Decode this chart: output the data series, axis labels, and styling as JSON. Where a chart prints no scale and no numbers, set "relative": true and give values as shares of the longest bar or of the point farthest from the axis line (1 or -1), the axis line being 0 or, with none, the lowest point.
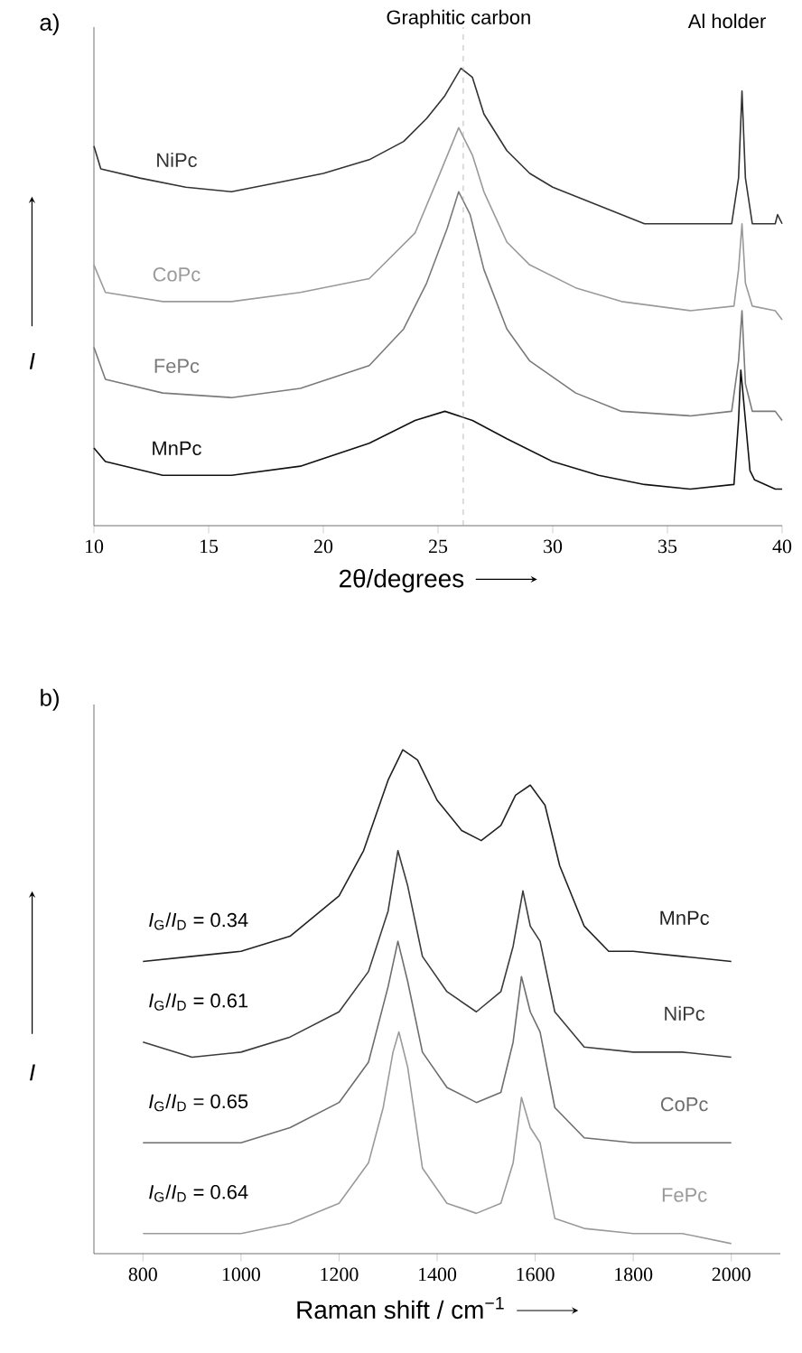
{
  "chart_data": [
    {
      "type": "line",
      "title": "a)",
      "xlabel": "2θ/degrees",
      "ylabel": "I",
      "relative": true,
      "xlim": [
        10,
        40
      ],
      "xticks": [
        10,
        15,
        20,
        25,
        30,
        35,
        40
      ],
      "annotations": [
        "Graphitic carbon",
        "Al holder"
      ],
      "ref_lines": [
        {
          "axis": "x",
          "value": 26.1,
          "color": "#aaaaaa",
          "line_style": "dashed"
        }
      ],
      "series": [
        {
          "name": "NiPc",
          "color": "#333333",
          "x": [
            10,
            10.3,
            12,
            14,
            16,
            18,
            20,
            22,
            23.5,
            24.5,
            25.3,
            26,
            26.5,
            27,
            28,
            29,
            30,
            32,
            34,
            36,
            37.8,
            38.1,
            38.25,
            38.4,
            38.7,
            39.7,
            39.8,
            40
          ],
          "values": [
            0.83,
            0.78,
            0.76,
            0.74,
            0.73,
            0.75,
            0.77,
            0.8,
            0.84,
            0.89,
            0.94,
            1.0,
            0.98,
            0.9,
            0.82,
            0.77,
            0.74,
            0.7,
            0.66,
            0.66,
            0.66,
            0.76,
            0.95,
            0.76,
            0.66,
            0.66,
            0.68,
            0.66
          ]
        },
        {
          "name": "CoPc",
          "color": "#9a9a9a",
          "x": [
            10,
            10.5,
            13,
            16,
            19,
            22,
            24,
            25,
            25.9,
            26.5,
            27,
            28,
            29,
            31,
            33,
            36,
            37.9,
            38.1,
            38.25,
            38.4,
            38.7,
            39.7,
            40
          ],
          "values": [
            0.57,
            0.51,
            0.49,
            0.49,
            0.51,
            0.54,
            0.64,
            0.76,
            0.87,
            0.81,
            0.73,
            0.62,
            0.57,
            0.52,
            0.49,
            0.47,
            0.48,
            0.56,
            0.66,
            0.53,
            0.48,
            0.47,
            0.45
          ]
        },
        {
          "name": "FePc",
          "color": "#7a7a7a",
          "x": [
            10,
            10.5,
            13,
            16,
            19,
            22,
            23.5,
            24.5,
            25.4,
            25.9,
            26.4,
            27,
            28,
            29,
            31,
            33,
            36,
            37.8,
            38.1,
            38.25,
            38.4,
            38.7,
            39.7,
            40
          ],
          "values": [
            0.39,
            0.32,
            0.29,
            0.28,
            0.3,
            0.35,
            0.43,
            0.53,
            0.65,
            0.73,
            0.68,
            0.56,
            0.43,
            0.36,
            0.29,
            0.25,
            0.24,
            0.25,
            0.36,
            0.47,
            0.31,
            0.25,
            0.25,
            0.23
          ]
        },
        {
          "name": "MnPc",
          "color": "#111111",
          "x": [
            10,
            10.5,
            13,
            16,
            19,
            22,
            24,
            25.3,
            26.5,
            28,
            30,
            32,
            34,
            36,
            37.9,
            38.1,
            38.2,
            38.4,
            38.6,
            38.8,
            39.7,
            40
          ],
          "values": [
            0.17,
            0.14,
            0.11,
            0.11,
            0.13,
            0.18,
            0.23,
            0.25,
            0.23,
            0.19,
            0.14,
            0.11,
            0.09,
            0.08,
            0.09,
            0.23,
            0.34,
            0.23,
            0.12,
            0.1,
            0.08,
            0.08
          ]
        }
      ]
    },
    {
      "type": "line",
      "title": "b)",
      "xlabel": "Raman shift / cm$^{−1}$",
      "ylabel": "I",
      "relative": true,
      "xlim": [
        700,
        2100
      ],
      "xticks": [
        800,
        1000,
        1200,
        1400,
        1600,
        1800,
        2000
      ],
      "annotations": [
        "*I*$_{G}$/*I*$_{D}$ = 0.34",
        "*I*$_{G}$/*I*$_{D}$ = 0.61",
        "*I*$_{G}$/*I*$_{D}$ = 0.65",
        "*I*$_{G}$/*I*$_{D}$ = 0.64"
      ],
      "series": [
        {
          "name": "MnPc",
          "color": "#222222",
          "x": [
            800,
            900,
            1000,
            1100,
            1200,
            1250,
            1300,
            1330,
            1360,
            1400,
            1450,
            1490,
            1530,
            1560,
            1590,
            1620,
            1650,
            1700,
            1750,
            1800,
            1900,
            2000
          ],
          "values": [
            0.58,
            0.59,
            0.6,
            0.63,
            0.71,
            0.8,
            0.94,
            1.0,
            0.98,
            0.9,
            0.84,
            0.82,
            0.85,
            0.91,
            0.93,
            0.89,
            0.77,
            0.65,
            0.6,
            0.6,
            0.59,
            0.58
          ]
        },
        {
          "name": "NiPc",
          "color": "#3c3c3c",
          "x": [
            800,
            900,
            1000,
            1100,
            1200,
            1260,
            1300,
            1320,
            1340,
            1370,
            1420,
            1480,
            1530,
            1555,
            1575,
            1590,
            1610,
            1640,
            1700,
            1800,
            1900,
            2000
          ],
          "values": [
            0.42,
            0.39,
            0.4,
            0.43,
            0.48,
            0.56,
            0.68,
            0.8,
            0.73,
            0.59,
            0.52,
            0.48,
            0.52,
            0.61,
            0.72,
            0.65,
            0.62,
            0.48,
            0.41,
            0.4,
            0.4,
            0.39
          ]
        },
        {
          "name": "CoPc",
          "color": "#6e6e6e",
          "x": [
            800,
            900,
            1000,
            1100,
            1200,
            1260,
            1300,
            1320,
            1340,
            1370,
            1420,
            1480,
            1530,
            1555,
            1572,
            1590,
            1610,
            1640,
            1700,
            1800,
            1900,
            2000
          ],
          "values": [
            0.22,
            0.22,
            0.22,
            0.25,
            0.3,
            0.38,
            0.53,
            0.62,
            0.54,
            0.4,
            0.33,
            0.3,
            0.32,
            0.42,
            0.55,
            0.48,
            0.44,
            0.29,
            0.23,
            0.22,
            0.22,
            0.22
          ]
        },
        {
          "name": "FePc",
          "color": "#9a9a9a",
          "x": [
            800,
            900,
            1000,
            1100,
            1200,
            1260,
            1290,
            1310,
            1322,
            1340,
            1370,
            1420,
            1480,
            1530,
            1555,
            1572,
            1590,
            1610,
            1640,
            1700,
            1800,
            1900,
            2000
          ],
          "values": [
            0.04,
            0.04,
            0.04,
            0.06,
            0.1,
            0.18,
            0.29,
            0.4,
            0.44,
            0.37,
            0.17,
            0.1,
            0.08,
            0.1,
            0.18,
            0.31,
            0.25,
            0.22,
            0.07,
            0.05,
            0.04,
            0.04,
            0.02
          ]
        }
      ]
    }
  ]
}
